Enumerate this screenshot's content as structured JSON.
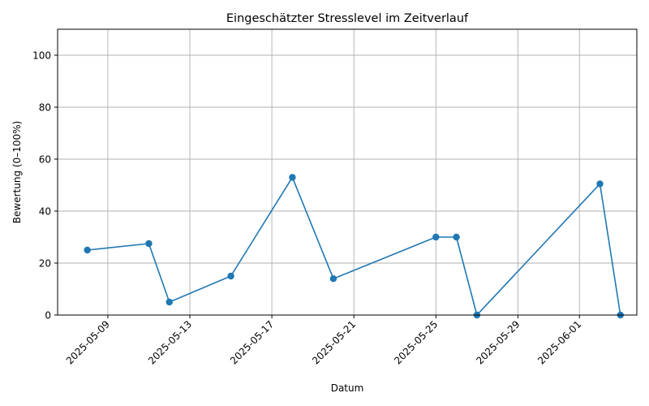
{
  "chart_data": {
    "type": "line",
    "title": "Eingeschätzter Stresslevel im Zeitverlauf",
    "xlabel": "Datum",
    "ylabel": "Bewertung (0–100%)",
    "ylim": [
      0,
      110
    ],
    "xlim": [
      "2025-05-06",
      "2025-06-04"
    ],
    "grid": true,
    "color": "#1f77b4",
    "y_ticks": [
      0,
      20,
      40,
      60,
      80,
      100
    ],
    "x_ticks": [
      "2025-05-09",
      "2025-05-13",
      "2025-05-17",
      "2025-05-21",
      "2025-05-25",
      "2025-05-29",
      "2025-06-01"
    ],
    "series": [
      {
        "points": [
          {
            "x": "2025-05-08",
            "y": 25
          },
          {
            "x": "2025-05-11",
            "y": 27.5
          },
          {
            "x": "2025-05-12",
            "y": 5
          },
          {
            "x": "2025-05-15",
            "y": 15
          },
          {
            "x": "2025-05-18",
            "y": 53
          },
          {
            "x": "2025-05-20",
            "y": 14
          },
          {
            "x": "2025-05-25",
            "y": 30
          },
          {
            "x": "2025-05-26",
            "y": 30
          },
          {
            "x": "2025-05-27",
            "y": 0
          },
          {
            "x": "2025-06-02",
            "y": 50.5
          },
          {
            "x": "2025-06-03",
            "y": 0
          }
        ]
      }
    ]
  }
}
